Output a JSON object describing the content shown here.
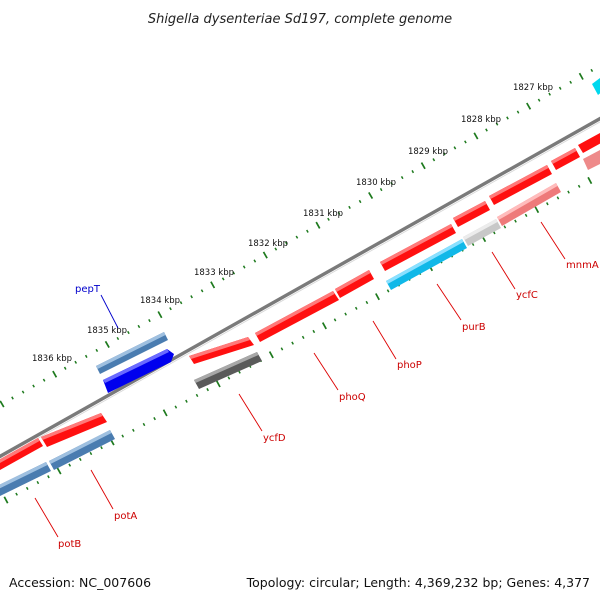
{
  "title": "Shigella dysenteriae Sd197, complete genome",
  "accession_text": "Accession: NC_007606",
  "stats_text": "Topology: circular; Length: 4,369,232 bp; Genes: 4,377",
  "colors": {
    "backbone": "#8a8a8a",
    "tick": "#1e7a1e",
    "label_red": "#cc0000",
    "label_blue": "#0000cc"
  },
  "ticks": [
    {
      "label": "1827 kbp",
      "kbp": 1827
    },
    {
      "label": "1828 kbp",
      "kbp": 1828
    },
    {
      "label": "1829 kbp",
      "kbp": 1829
    },
    {
      "label": "1830 kbp",
      "kbp": 1830
    },
    {
      "label": "1831 kbp",
      "kbp": 1831
    },
    {
      "label": "1832 kbp",
      "kbp": 1832
    },
    {
      "label": "1833 kbp",
      "kbp": 1833
    },
    {
      "label": "1834 kbp",
      "kbp": 1834
    },
    {
      "label": "1835 kbp",
      "kbp": 1835
    },
    {
      "label": "1836 kbp",
      "kbp": 1836
    }
  ],
  "genes": [
    {
      "name": "potB",
      "label": "potB"
    },
    {
      "name": "potA",
      "label": "potA"
    },
    {
      "name": "pepT",
      "label": "pepT"
    },
    {
      "name": "ycfD",
      "label": "ycfD"
    },
    {
      "name": "phoQ",
      "label": "phoQ"
    },
    {
      "name": "phoP",
      "label": "phoP"
    },
    {
      "name": "purB",
      "label": "purB"
    },
    {
      "name": "ycfC",
      "label": "ycfC"
    },
    {
      "name": "mnmA",
      "label": "mnmA"
    }
  ]
}
